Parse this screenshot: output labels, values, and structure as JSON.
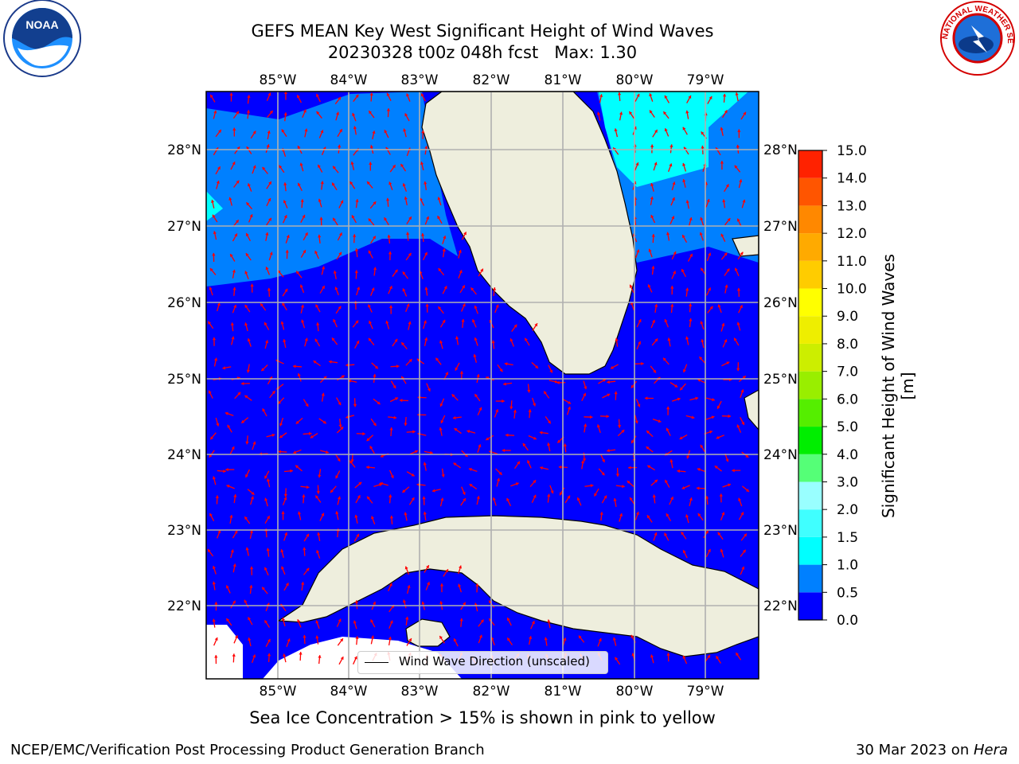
{
  "title": {
    "line1": "GEFS MEAN Key West Significant Height of Wind Waves",
    "line2": "20230328 t00z 048h fcst   Max: 1.30"
  },
  "logos": {
    "left": {
      "name": "noaa-logo",
      "text": "NOAA",
      "ring_text": "NATIONAL OCEANIC AND ATMOSPHERIC ADMINISTRATION · U.S. DEPARTMENT OF COMMERCE"
    },
    "right": {
      "name": "nws-logo",
      "ring_text": "NATIONAL WEATHER SERVICE"
    }
  },
  "map": {
    "lon_labels": [
      "85°W",
      "84°W",
      "83°W",
      "82°W",
      "81°W",
      "80°W",
      "79°W"
    ],
    "lat_labels": [
      "28°N",
      "27°N",
      "26°N",
      "25°N",
      "24°N",
      "23°N",
      "22°N"
    ],
    "gridlines": true,
    "ocean_colors": {
      "level_0_0_5": "#0000ff",
      "level_0_5_1_0": "#0080ff",
      "level_1_0_1_5": "#00ffff"
    },
    "land_color": "#eeeedd",
    "arrow_color": "#ff0000",
    "legend": {
      "label": "Wind Wave Direction (unscaled)",
      "placement": "lower-center"
    }
  },
  "colorbar": {
    "label": "Significant Height of Wind Waves [m]",
    "ticks": [
      "0.0",
      "0.5",
      "1.0",
      "1.5",
      "2.0",
      "3.0",
      "4.0",
      "5.0",
      "6.0",
      "7.0",
      "8.0",
      "9.0",
      "10.0",
      "11.0",
      "12.0",
      "13.0",
      "14.0",
      "15.0"
    ],
    "colors": [
      "#0000ff",
      "#0080ff",
      "#00ffff",
      "#40ffff",
      "#99ffff",
      "#55ff77",
      "#00ee00",
      "#55ee00",
      "#99ee00",
      "#ccee00",
      "#eeee00",
      "#ffff00",
      "#ffcc00",
      "#ffaa00",
      "#ff8800",
      "#ff5500",
      "#ff2200"
    ]
  },
  "footer": {
    "note": "Sea Ice Concentration > 15% is shown in pink to yellow",
    "left": "NCEP/EMC/Verification Post Processing Product Generation Branch",
    "right_date": "30 Mar 2023 on ",
    "right_machine": "Hera"
  }
}
